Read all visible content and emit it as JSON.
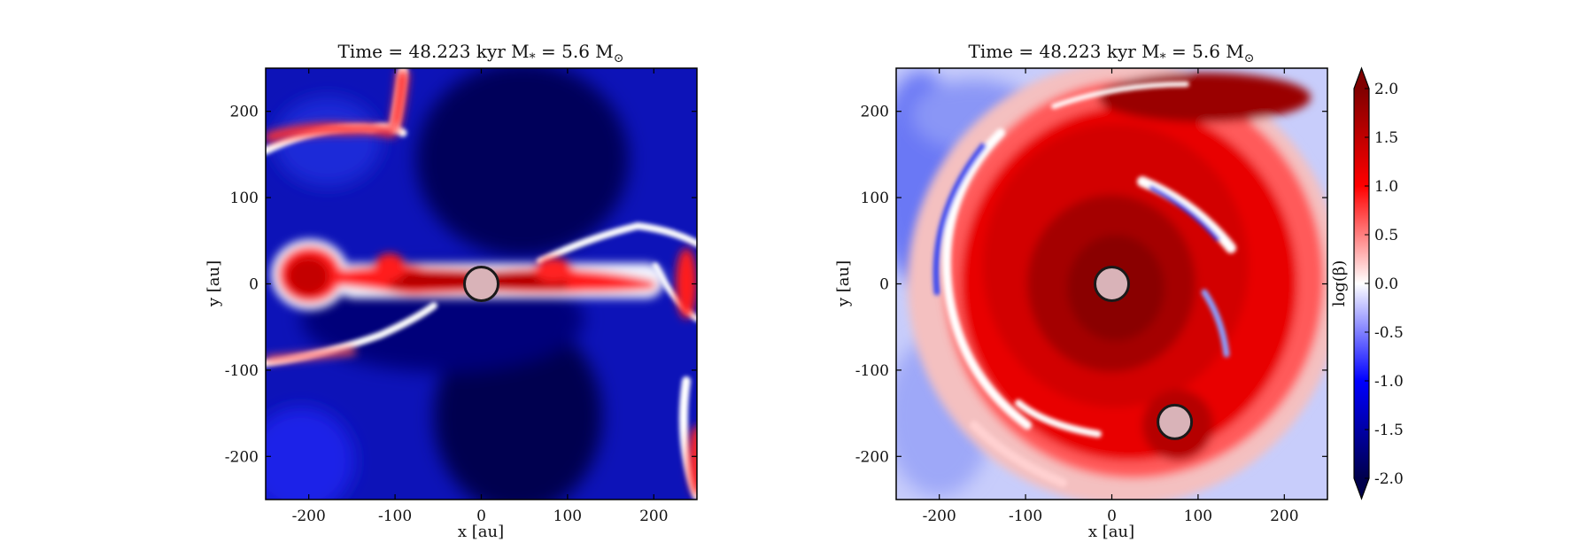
{
  "figure": {
    "colorbar": {
      "label": "log(β)",
      "min": -2.0,
      "max": 2.0,
      "extend": "both",
      "ticks": [
        2.0,
        1.5,
        1.0,
        0.5,
        0.0,
        -0.5,
        -1.0,
        -1.5,
        -2.0
      ],
      "tick_labels": [
        "2.0",
        "1.5",
        "1.0",
        "0.5",
        "0.0",
        "-0.5",
        "-1.0",
        "-1.5",
        "-2.0"
      ],
      "colormap": "seismic",
      "colors": [
        "#00004c",
        "#0000ff",
        "#ffffff",
        "#ff0000",
        "#800000"
      ]
    }
  },
  "chart_data": [
    {
      "type": "heatmap",
      "title": "Time = 48.223 kyr    M$_*$ = 5.6 M$_\\odot$",
      "title_text": "Time = 48.223 kyr    M",
      "title_sub1": "*",
      "title_mid": " = 5.6 M",
      "title_sub2": "⊙",
      "xlabel": "x [au]",
      "ylabel": "y [au]",
      "xlim": [
        -250,
        250
      ],
      "ylim": [
        -250,
        250
      ],
      "xticks": [
        -200,
        -100,
        0,
        100,
        200
      ],
      "yticks": [
        200,
        100,
        0,
        -100,
        -200
      ],
      "xtick_labels": [
        "-200",
        "-100",
        "0",
        "100",
        "200"
      ],
      "ytick_labels": [
        "200",
        "100",
        "0",
        "-100",
        "-200"
      ],
      "sinks": [
        {
          "x": 0,
          "y": 0
        }
      ]
    },
    {
      "type": "heatmap",
      "title_text": "Time = 48.223 kyr    M",
      "title_sub1": "*",
      "title_mid": " = 5.6 M",
      "title_sub2": "⊙",
      "xlabel": "x [au]",
      "ylabel": "y [au]",
      "xlim": [
        -250,
        250
      ],
      "ylim": [
        -250,
        250
      ],
      "xticks": [
        -200,
        -100,
        0,
        100,
        200
      ],
      "yticks": [
        200,
        100,
        0,
        -100,
        -200
      ],
      "xtick_labels": [
        "-200",
        "-100",
        "0",
        "100",
        "200"
      ],
      "ytick_labels": [
        "200",
        "100",
        "0",
        "-100",
        "-200"
      ],
      "sinks": [
        {
          "x": 0,
          "y": 0
        },
        {
          "x": 73,
          "y": -160
        }
      ]
    }
  ]
}
